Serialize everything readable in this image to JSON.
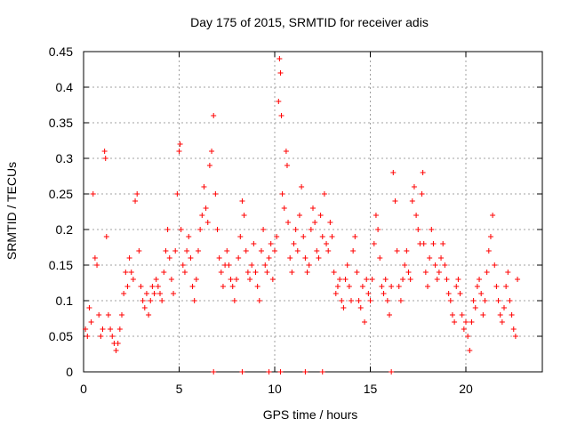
{
  "chart_data": {
    "type": "scatter",
    "title": "Day 175 of 2015, SRMTID for receiver adis",
    "xlabel": "GPS time / hours",
    "ylabel": "SRMTID / TECUs",
    "xlim": [
      0,
      24
    ],
    "ylim": [
      0,
      0.45
    ],
    "xticks": [
      0,
      5,
      10,
      15,
      20
    ],
    "xtick_labels": [
      "0",
      "5",
      "10",
      "15",
      "20"
    ],
    "yticks": [
      0,
      0.05,
      0.1,
      0.15,
      0.2,
      0.25,
      0.3,
      0.35,
      0.4,
      0.45
    ],
    "ytick_labels": [
      "0",
      "0.05",
      "0.1",
      "0.15",
      "0.2",
      "0.25",
      "0.3",
      "0.35",
      "0.4",
      "0.45"
    ],
    "grid": true,
    "marker": "+",
    "color": "#ff0000",
    "series": [
      {
        "name": "SRMTID",
        "points": [
          [
            0.1,
            0.06
          ],
          [
            0.2,
            0.05
          ],
          [
            0.3,
            0.09
          ],
          [
            0.4,
            0.07
          ],
          [
            0.5,
            0.25
          ],
          [
            0.6,
            0.16
          ],
          [
            0.7,
            0.15
          ],
          [
            0.8,
            0.08
          ],
          [
            0.9,
            0.05
          ],
          [
            1.0,
            0.06
          ],
          [
            1.1,
            0.31
          ],
          [
            1.15,
            0.3
          ],
          [
            1.2,
            0.19
          ],
          [
            1.3,
            0.08
          ],
          [
            1.4,
            0.06
          ],
          [
            1.5,
            0.05
          ],
          [
            1.6,
            0.04
          ],
          [
            1.7,
            0.03
          ],
          [
            1.8,
            0.04
          ],
          [
            1.9,
            0.06
          ],
          [
            2.0,
            0.08
          ],
          [
            2.1,
            0.11
          ],
          [
            2.2,
            0.14
          ],
          [
            2.3,
            0.12
          ],
          [
            2.4,
            0.16
          ],
          [
            2.5,
            0.14
          ],
          [
            2.6,
            0.13
          ],
          [
            2.7,
            0.24
          ],
          [
            2.8,
            0.25
          ],
          [
            2.9,
            0.17
          ],
          [
            3.0,
            0.12
          ],
          [
            3.1,
            0.1
          ],
          [
            3.2,
            0.09
          ],
          [
            3.3,
            0.11
          ],
          [
            3.4,
            0.08
          ],
          [
            3.5,
            0.1
          ],
          [
            3.6,
            0.12
          ],
          [
            3.7,
            0.11
          ],
          [
            3.8,
            0.13
          ],
          [
            3.9,
            0.12
          ],
          [
            4.0,
            0.11
          ],
          [
            4.1,
            0.1
          ],
          [
            4.2,
            0.14
          ],
          [
            4.3,
            0.17
          ],
          [
            4.4,
            0.2
          ],
          [
            4.5,
            0.16
          ],
          [
            4.6,
            0.13
          ],
          [
            4.7,
            0.11
          ],
          [
            4.8,
            0.17
          ],
          [
            4.9,
            0.25
          ],
          [
            5.0,
            0.31
          ],
          [
            5.05,
            0.32
          ],
          [
            5.1,
            0.2
          ],
          [
            5.2,
            0.15
          ],
          [
            5.3,
            0.14
          ],
          [
            5.4,
            0.17
          ],
          [
            5.5,
            0.19
          ],
          [
            5.6,
            0.16
          ],
          [
            5.7,
            0.12
          ],
          [
            5.8,
            0.1
          ],
          [
            5.9,
            0.13
          ],
          [
            6.0,
            0.17
          ],
          [
            6.1,
            0.2
          ],
          [
            6.2,
            0.22
          ],
          [
            6.3,
            0.26
          ],
          [
            6.4,
            0.23
          ],
          [
            6.5,
            0.21
          ],
          [
            6.6,
            0.29
          ],
          [
            6.7,
            0.31
          ],
          [
            6.8,
            0.36
          ],
          [
            6.9,
            0.25
          ],
          [
            7.0,
            0.2
          ],
          [
            7.1,
            0.16
          ],
          [
            7.2,
            0.14
          ],
          [
            7.3,
            0.12
          ],
          [
            7.4,
            0.15
          ],
          [
            7.5,
            0.17
          ],
          [
            7.6,
            0.15
          ],
          [
            7.7,
            0.13
          ],
          [
            7.8,
            0.12
          ],
          [
            7.9,
            0.1
          ],
          [
            8.0,
            0.13
          ],
          [
            8.1,
            0.16
          ],
          [
            8.2,
            0.19
          ],
          [
            8.3,
            0.24
          ],
          [
            8.4,
            0.22
          ],
          [
            8.5,
            0.17
          ],
          [
            8.6,
            0.14
          ],
          [
            8.7,
            0.13
          ],
          [
            8.8,
            0.15
          ],
          [
            8.9,
            0.18
          ],
          [
            9.0,
            0.14
          ],
          [
            9.1,
            0.12
          ],
          [
            9.2,
            0.1
          ],
          [
            9.3,
            0.17
          ],
          [
            9.4,
            0.2
          ],
          [
            9.5,
            0.15
          ],
          [
            9.6,
            0.14
          ],
          [
            9.7,
            0.16
          ],
          [
            9.8,
            0.18
          ],
          [
            9.9,
            0.13
          ],
          [
            10.0,
            0.17
          ],
          [
            10.1,
            0.19
          ],
          [
            10.2,
            0.38
          ],
          [
            10.25,
            0.44
          ],
          [
            10.3,
            0.42
          ],
          [
            10.35,
            0.36
          ],
          [
            10.4,
            0.25
          ],
          [
            10.5,
            0.23
          ],
          [
            10.6,
            0.31
          ],
          [
            10.65,
            0.29
          ],
          [
            10.7,
            0.21
          ],
          [
            10.8,
            0.16
          ],
          [
            10.9,
            0.14
          ],
          [
            11.0,
            0.18
          ],
          [
            11.1,
            0.2
          ],
          [
            11.2,
            0.17
          ],
          [
            11.3,
            0.22
          ],
          [
            11.4,
            0.26
          ],
          [
            11.5,
            0.19
          ],
          [
            11.6,
            0.16
          ],
          [
            11.7,
            0.14
          ],
          [
            11.8,
            0.15
          ],
          [
            11.9,
            0.2
          ],
          [
            12.0,
            0.23
          ],
          [
            12.1,
            0.21
          ],
          [
            12.2,
            0.17
          ],
          [
            12.3,
            0.16
          ],
          [
            12.4,
            0.22
          ],
          [
            12.5,
            0.19
          ],
          [
            12.6,
            0.25
          ],
          [
            12.7,
            0.18
          ],
          [
            12.8,
            0.17
          ],
          [
            12.9,
            0.21
          ],
          [
            13.0,
            0.19
          ],
          [
            13.1,
            0.14
          ],
          [
            13.2,
            0.11
          ],
          [
            13.3,
            0.12
          ],
          [
            13.4,
            0.13
          ],
          [
            13.5,
            0.1
          ],
          [
            13.6,
            0.09
          ],
          [
            13.7,
            0.13
          ],
          [
            13.8,
            0.15
          ],
          [
            13.9,
            0.12
          ],
          [
            14.0,
            0.1
          ],
          [
            14.1,
            0.17
          ],
          [
            14.2,
            0.19
          ],
          [
            14.3,
            0.14
          ],
          [
            14.4,
            0.1
          ],
          [
            14.5,
            0.09
          ],
          [
            14.6,
            0.12
          ],
          [
            14.7,
            0.07
          ],
          [
            14.8,
            0.13
          ],
          [
            14.9,
            0.11
          ],
          [
            15.0,
            0.1
          ],
          [
            15.1,
            0.13
          ],
          [
            15.2,
            0.18
          ],
          [
            15.3,
            0.22
          ],
          [
            15.4,
            0.2
          ],
          [
            15.5,
            0.16
          ],
          [
            15.6,
            0.12
          ],
          [
            15.7,
            0.11
          ],
          [
            15.8,
            0.13
          ],
          [
            15.9,
            0.1
          ],
          [
            16.0,
            0.08
          ],
          [
            16.1,
            0.12
          ],
          [
            16.2,
            0.28
          ],
          [
            16.3,
            0.24
          ],
          [
            16.4,
            0.17
          ],
          [
            16.5,
            0.12
          ],
          [
            16.6,
            0.1
          ],
          [
            16.7,
            0.13
          ],
          [
            16.8,
            0.15
          ],
          [
            16.9,
            0.17
          ],
          [
            17.0,
            0.14
          ],
          [
            17.1,
            0.13
          ],
          [
            17.2,
            0.24
          ],
          [
            17.3,
            0.26
          ],
          [
            17.4,
            0.22
          ],
          [
            17.5,
            0.2
          ],
          [
            17.6,
            0.18
          ],
          [
            17.7,
            0.25
          ],
          [
            17.75,
            0.28
          ],
          [
            17.8,
            0.18
          ],
          [
            17.9,
            0.14
          ],
          [
            18.0,
            0.12
          ],
          [
            18.1,
            0.16
          ],
          [
            18.2,
            0.2
          ],
          [
            18.3,
            0.18
          ],
          [
            18.4,
            0.15
          ],
          [
            18.5,
            0.13
          ],
          [
            18.6,
            0.14
          ],
          [
            18.7,
            0.16
          ],
          [
            18.8,
            0.18
          ],
          [
            18.9,
            0.15
          ],
          [
            19.0,
            0.13
          ],
          [
            19.1,
            0.11
          ],
          [
            19.2,
            0.1
          ],
          [
            19.3,
            0.08
          ],
          [
            19.4,
            0.07
          ],
          [
            19.5,
            0.12
          ],
          [
            19.6,
            0.13
          ],
          [
            19.7,
            0.11
          ],
          [
            19.8,
            0.08
          ],
          [
            19.9,
            0.06
          ],
          [
            20.0,
            0.07
          ],
          [
            20.1,
            0.05
          ],
          [
            20.2,
            0.03
          ],
          [
            20.3,
            0.07
          ],
          [
            20.4,
            0.1
          ],
          [
            20.5,
            0.09
          ],
          [
            20.6,
            0.12
          ],
          [
            20.7,
            0.13
          ],
          [
            20.8,
            0.11
          ],
          [
            20.9,
            0.08
          ],
          [
            21.0,
            0.1
          ],
          [
            21.1,
            0.14
          ],
          [
            21.2,
            0.17
          ],
          [
            21.3,
            0.19
          ],
          [
            21.4,
            0.22
          ],
          [
            21.5,
            0.15
          ],
          [
            21.6,
            0.12
          ],
          [
            21.7,
            0.1
          ],
          [
            21.8,
            0.08
          ],
          [
            21.9,
            0.07
          ],
          [
            22.0,
            0.09
          ],
          [
            22.1,
            0.12
          ],
          [
            22.2,
            0.14
          ],
          [
            22.3,
            0.1
          ],
          [
            22.4,
            0.08
          ],
          [
            22.5,
            0.06
          ],
          [
            22.6,
            0.05
          ],
          [
            22.7,
            0.13
          ],
          [
            6.8,
            0.0
          ],
          [
            8.3,
            0.0
          ],
          [
            9.7,
            0.0
          ],
          [
            10.3,
            0.0
          ],
          [
            11.6,
            0.0
          ],
          [
            12.5,
            0.0
          ],
          [
            16.1,
            0.0
          ]
        ]
      }
    ]
  }
}
